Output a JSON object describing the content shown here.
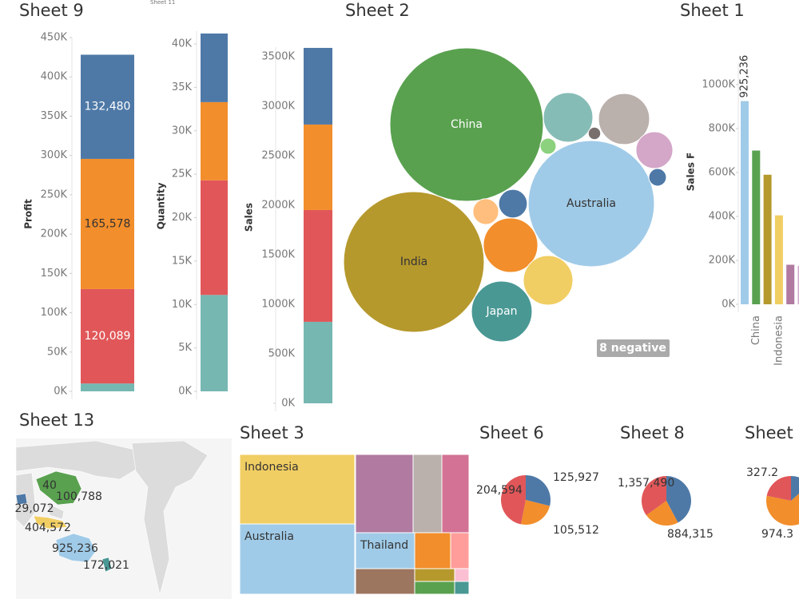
{
  "chart_data": [
    {
      "type": "stacked_bar",
      "title": "Sheet 9",
      "ylabel": "Profit",
      "ylim": [
        0,
        450000
      ],
      "yticks": [
        {
          "value": 0,
          "label": "0K"
        },
        {
          "value": 50000,
          "label": "50K"
        },
        {
          "value": 100000,
          "label": "100K"
        },
        {
          "value": 150000,
          "label": "150K"
        },
        {
          "value": 200000,
          "label": "200K"
        },
        {
          "value": 250000,
          "label": "250K"
        },
        {
          "value": 300000,
          "label": "300K"
        },
        {
          "value": 350000,
          "label": "350K"
        },
        {
          "value": 400000,
          "label": "400K"
        },
        {
          "value": 450000,
          "label": "450K"
        }
      ],
      "series": [
        {
          "color": "#76b7b2",
          "values": [
            10000
          ]
        },
        {
          "color": "#e15759",
          "values": [
            120089
          ],
          "value_labels": [
            "120,089"
          ]
        },
        {
          "color": "#f28e2b",
          "values": [
            165578
          ],
          "value_labels": [
            "165,578"
          ]
        },
        {
          "color": "#4e79a7",
          "values": [
            132480
          ],
          "value_labels": [
            "132,480"
          ]
        }
      ]
    },
    {
      "type": "stacked_bar",
      "title": "Sheet 11",
      "ylabel": "Quantity",
      "ylim": [
        0,
        41500
      ],
      "yticks": [
        {
          "value": 0,
          "label": "0K"
        },
        {
          "value": 5000,
          "label": "5K"
        },
        {
          "value": 10000,
          "label": "10K"
        },
        {
          "value": 15000,
          "label": "15K"
        },
        {
          "value": 20000,
          "label": "20K"
        },
        {
          "value": 25000,
          "label": "25K"
        },
        {
          "value": 30000,
          "label": "30K"
        },
        {
          "value": 35000,
          "label": "35K"
        },
        {
          "value": 40000,
          "label": "40K"
        }
      ],
      "series": [
        {
          "color": "#76b7b2",
          "values": [
            11100
          ]
        },
        {
          "color": "#e15759",
          "values": [
            13200
          ]
        },
        {
          "color": "#f28e2b",
          "values": [
            9000
          ]
        },
        {
          "color": "#4e79a7",
          "values": [
            7900
          ]
        }
      ]
    },
    {
      "type": "stacked_bar",
      "title": "Sheet 2",
      "ylabel": "Sales",
      "ylim": [
        0,
        3600000
      ],
      "yticks": [
        {
          "value": 0,
          "label": "0K"
        },
        {
          "value": 500000,
          "label": "500K"
        },
        {
          "value": 1000000,
          "label": "1000K"
        },
        {
          "value": 1500000,
          "label": "1500K"
        },
        {
          "value": 2000000,
          "label": "2000K"
        },
        {
          "value": 2500000,
          "label": "2500K"
        },
        {
          "value": 3000000,
          "label": "3000K"
        },
        {
          "value": 3500000,
          "label": "3500K"
        }
      ],
      "series": [
        {
          "color": "#76b7b2",
          "values": [
            823000
          ]
        },
        {
          "color": "#e15759",
          "values": [
            1129000
          ]
        },
        {
          "color": "#f28e2b",
          "values": [
            863000
          ]
        },
        {
          "color": "#4e79a7",
          "values": [
            774000
          ]
        }
      ]
    },
    {
      "type": "bubble",
      "annotation": "8 negative",
      "categories": [
        "China",
        "Australia",
        "India",
        "Japan",
        null,
        null,
        null,
        null,
        null,
        null,
        null,
        null,
        null,
        null
      ],
      "values": [
        922,
        624,
        774,
        144,
        96,
        102,
        53,
        6,
        10,
        12,
        32,
        26,
        116,
        96
      ],
      "colors": [
        "#59a14f",
        "#a0cbe8",
        "#b6992d",
        "#499894",
        "#86bcb6",
        "#bab0ac",
        "#d4a6c8",
        "#79706e",
        "#8cd17d",
        "#4e79a7",
        "#4e79a7",
        "#ffbe7d",
        "#f28e2b",
        "#f1ce63"
      ]
    },
    {
      "type": "bar",
      "title": "Sheet 1",
      "ylabel": "Sales F",
      "ylim": [
        0,
        1100000
      ],
      "yticks": [
        {
          "value": 0,
          "label": "0K"
        },
        {
          "value": 200000,
          "label": "200K"
        },
        {
          "value": 400000,
          "label": "400K"
        },
        {
          "value": 600000,
          "label": "600K"
        },
        {
          "value": 800000,
          "label": "800K"
        },
        {
          "value": 1000000,
          "label": "1000K"
        }
      ],
      "categories": [
        null,
        "China",
        null,
        "Indonesia",
        null,
        null
      ],
      "values": [
        925236,
        700000,
        590000,
        405000,
        180000,
        175000
      ],
      "value_labels": [
        "925,236",
        null,
        null,
        null,
        null,
        null
      ],
      "colors": [
        "#a0cbe8",
        "#59a14f",
        "#b6992d",
        "#f1ce63",
        "#b07aa1",
        "#d4a6c8"
      ]
    },
    {
      "type": "map",
      "title": "Sheet 13",
      "values": [
        40,
        100788,
        29072,
        404572,
        925236,
        172021
      ],
      "value_labels": [
        "40",
        "100,788",
        "29,072",
        "404,572",
        "925,236",
        "172,021"
      ],
      "colors": [
        "#e15759",
        "#59a14f",
        "#4e79a7",
        "#f1ce63",
        "#a0cbe8",
        "#499894"
      ]
    },
    {
      "type": "treemap",
      "title": "Sheet 3",
      "categories": [
        "Indonesia",
        "Australia",
        null,
        null,
        null,
        "Thailand",
        null,
        null,
        null,
        null,
        null,
        null,
        null
      ],
      "values": [
        125,
        127,
        71,
        35,
        33,
        33,
        24,
        20,
        10,
        8,
        3,
        8,
        3
      ],
      "colors": [
        "#f1ce63",
        "#a0cbe8",
        "#b07aa1",
        "#bab0ac",
        "#d37295",
        "#a0cbe8",
        "#9d7660",
        "#f28e2b",
        "#ff9d9a",
        "#b6992d",
        "#fabfd2",
        "#59a14f",
        "#499894"
      ]
    },
    {
      "type": "pie",
      "title": "Sheet 6",
      "values": [
        125927,
        105512,
        204594
      ],
      "value_labels": [
        "125,927",
        "105,512",
        "204,594"
      ],
      "colors": [
        "#4e79a7",
        "#f28e2b",
        "#e15759"
      ]
    },
    {
      "type": "pie",
      "title": "Sheet 8",
      "values": [
        1640000,
        884315,
        1357490
      ],
      "value_labels": [
        null,
        "884,315",
        "1,357,490"
      ],
      "colors": [
        "#4e79a7",
        "#f28e2b",
        "#e15759"
      ]
    },
    {
      "type": "pie",
      "title": "Sheet",
      "values": [
        200,
        974.3,
        327.2
      ],
      "value_labels": [
        null,
        "974.3",
        "327.2"
      ],
      "colors": [
        "#4e79a7",
        "#f28e2b",
        "#e15759"
      ]
    }
  ]
}
